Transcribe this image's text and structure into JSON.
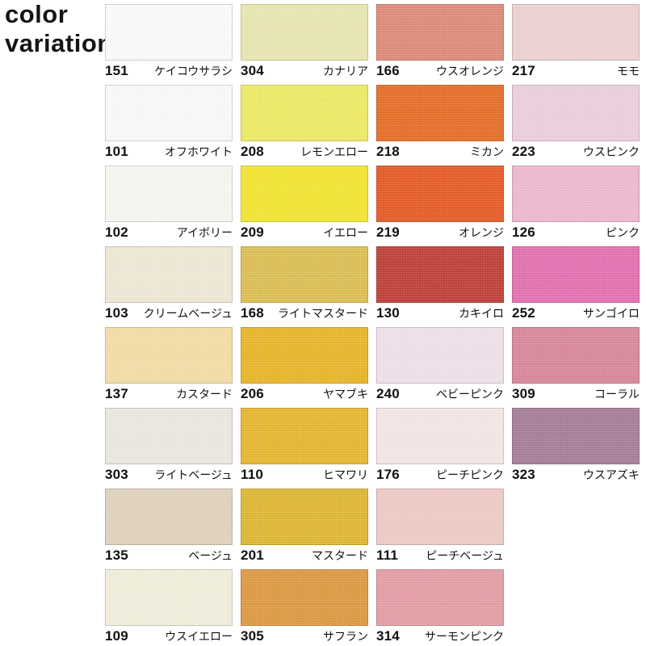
{
  "title": {
    "line1": "color",
    "line2": "variation"
  },
  "ink_color": "#151515",
  "columns": [
    {
      "items": [
        {
          "code": "151",
          "name": "ケイコウサラシ",
          "color": "#fefefe"
        },
        {
          "code": "101",
          "name": "オフホワイト",
          "color": "#fdfdfb"
        },
        {
          "code": "102",
          "name": "アイボリー",
          "color": "#fbfaf4"
        },
        {
          "code": "103",
          "name": "クリームベージュ",
          "color": "#f3ecd9"
        },
        {
          "code": "137",
          "name": "カスタード",
          "color": "#f7e0a9"
        },
        {
          "code": "303",
          "name": "ライトベージュ",
          "color": "#efece2"
        },
        {
          "code": "135",
          "name": "ベージュ",
          "color": "#e3d5bf"
        },
        {
          "code": "109",
          "name": "ウスイエロー",
          "color": "#f5f2de"
        }
      ]
    },
    {
      "items": [
        {
          "code": "304",
          "name": "カナリア",
          "color": "#edeab5"
        },
        {
          "code": "208",
          "name": "レモンエロー",
          "color": "#f1ee68"
        },
        {
          "code": "209",
          "name": "イエロー",
          "color": "#f6e832"
        },
        {
          "code": "168",
          "name": "ライトマスタード",
          "color": "#dfc156"
        },
        {
          "code": "206",
          "name": "ヤマブキ",
          "color": "#ecb92b"
        },
        {
          "code": "110",
          "name": "ヒマワリ",
          "color": "#e9ba31"
        },
        {
          "code": "201",
          "name": "マスタード",
          "color": "#e2ba35"
        },
        {
          "code": "305",
          "name": "サフラン",
          "color": "#e19c43"
        }
      ]
    },
    {
      "items": [
        {
          "code": "166",
          "name": "ウスオレンジ",
          "color": "#e18d7b"
        },
        {
          "code": "218",
          "name": "ミカン",
          "color": "#ea7029"
        },
        {
          "code": "219",
          "name": "オレンジ",
          "color": "#e95c28"
        },
        {
          "code": "130",
          "name": "カキイロ",
          "color": "#c2423a"
        },
        {
          "code": "240",
          "name": "ベビーピンク",
          "color": "#f3e3ee"
        },
        {
          "code": "176",
          "name": "ピーチピンク",
          "color": "#f8eae8"
        },
        {
          "code": "111",
          "name": "ピーチベージュ",
          "color": "#f2cdc9"
        },
        {
          "code": "314",
          "name": "サーモンピンク",
          "color": "#e8a0a8"
        }
      ]
    },
    {
      "items": [
        {
          "code": "217",
          "name": "モモ",
          "color": "#f1d4d5"
        },
        {
          "code": "223",
          "name": "ウスピンク",
          "color": "#efd2e1"
        },
        {
          "code": "126",
          "name": "ピンク",
          "color": "#f2bbd3"
        },
        {
          "code": "252",
          "name": "サンゴイロ",
          "color": "#e673b3"
        },
        {
          "code": "309",
          "name": "コーラル",
          "color": "#dc8a9b"
        },
        {
          "code": "323",
          "name": "ウスアズキ",
          "color": "#a8809b"
        }
      ]
    }
  ]
}
